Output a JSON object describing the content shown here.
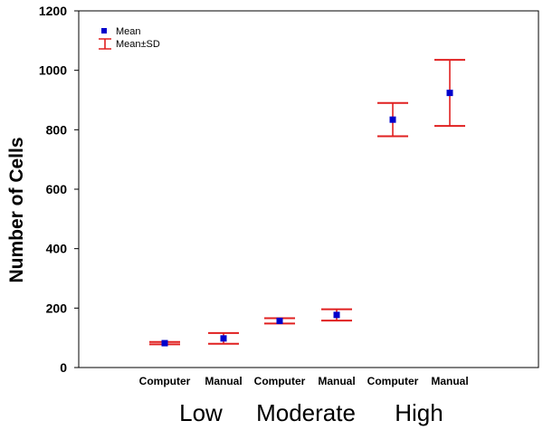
{
  "chart_data": {
    "type": "errorbar",
    "title": "",
    "xlabel": "",
    "ylabel": "Number of Cells",
    "ylim": [
      0,
      1200
    ],
    "yticks": [
      0,
      200,
      400,
      600,
      800,
      1000,
      1200
    ],
    "grid": false,
    "legend": {
      "position": "top-left",
      "mean_label": "Mean",
      "sd_label": "Mean±SD"
    },
    "colors": {
      "mean": "#0000cc",
      "sd": "#e02020",
      "axis": "#000000"
    },
    "groups": [
      "Low",
      "Moderate",
      "High"
    ],
    "categories": [
      "Computer",
      "Manual",
      "Computer",
      "Manual",
      "Computer",
      "Manual"
    ],
    "points": [
      {
        "group": "Low",
        "method": "Computer",
        "mean": 82,
        "lower": 78,
        "upper": 86
      },
      {
        "group": "Low",
        "method": "Manual",
        "mean": 98,
        "lower": 80,
        "upper": 116
      },
      {
        "group": "Moderate",
        "method": "Computer",
        "mean": 157,
        "lower": 148,
        "upper": 166
      },
      {
        "group": "Moderate",
        "method": "Manual",
        "mean": 177,
        "lower": 158,
        "upper": 196
      },
      {
        "group": "High",
        "method": "Computer",
        "mean": 834,
        "lower": 778,
        "upper": 890
      },
      {
        "group": "High",
        "method": "Manual",
        "mean": 924,
        "lower": 813,
        "upper": 1035
      }
    ]
  }
}
